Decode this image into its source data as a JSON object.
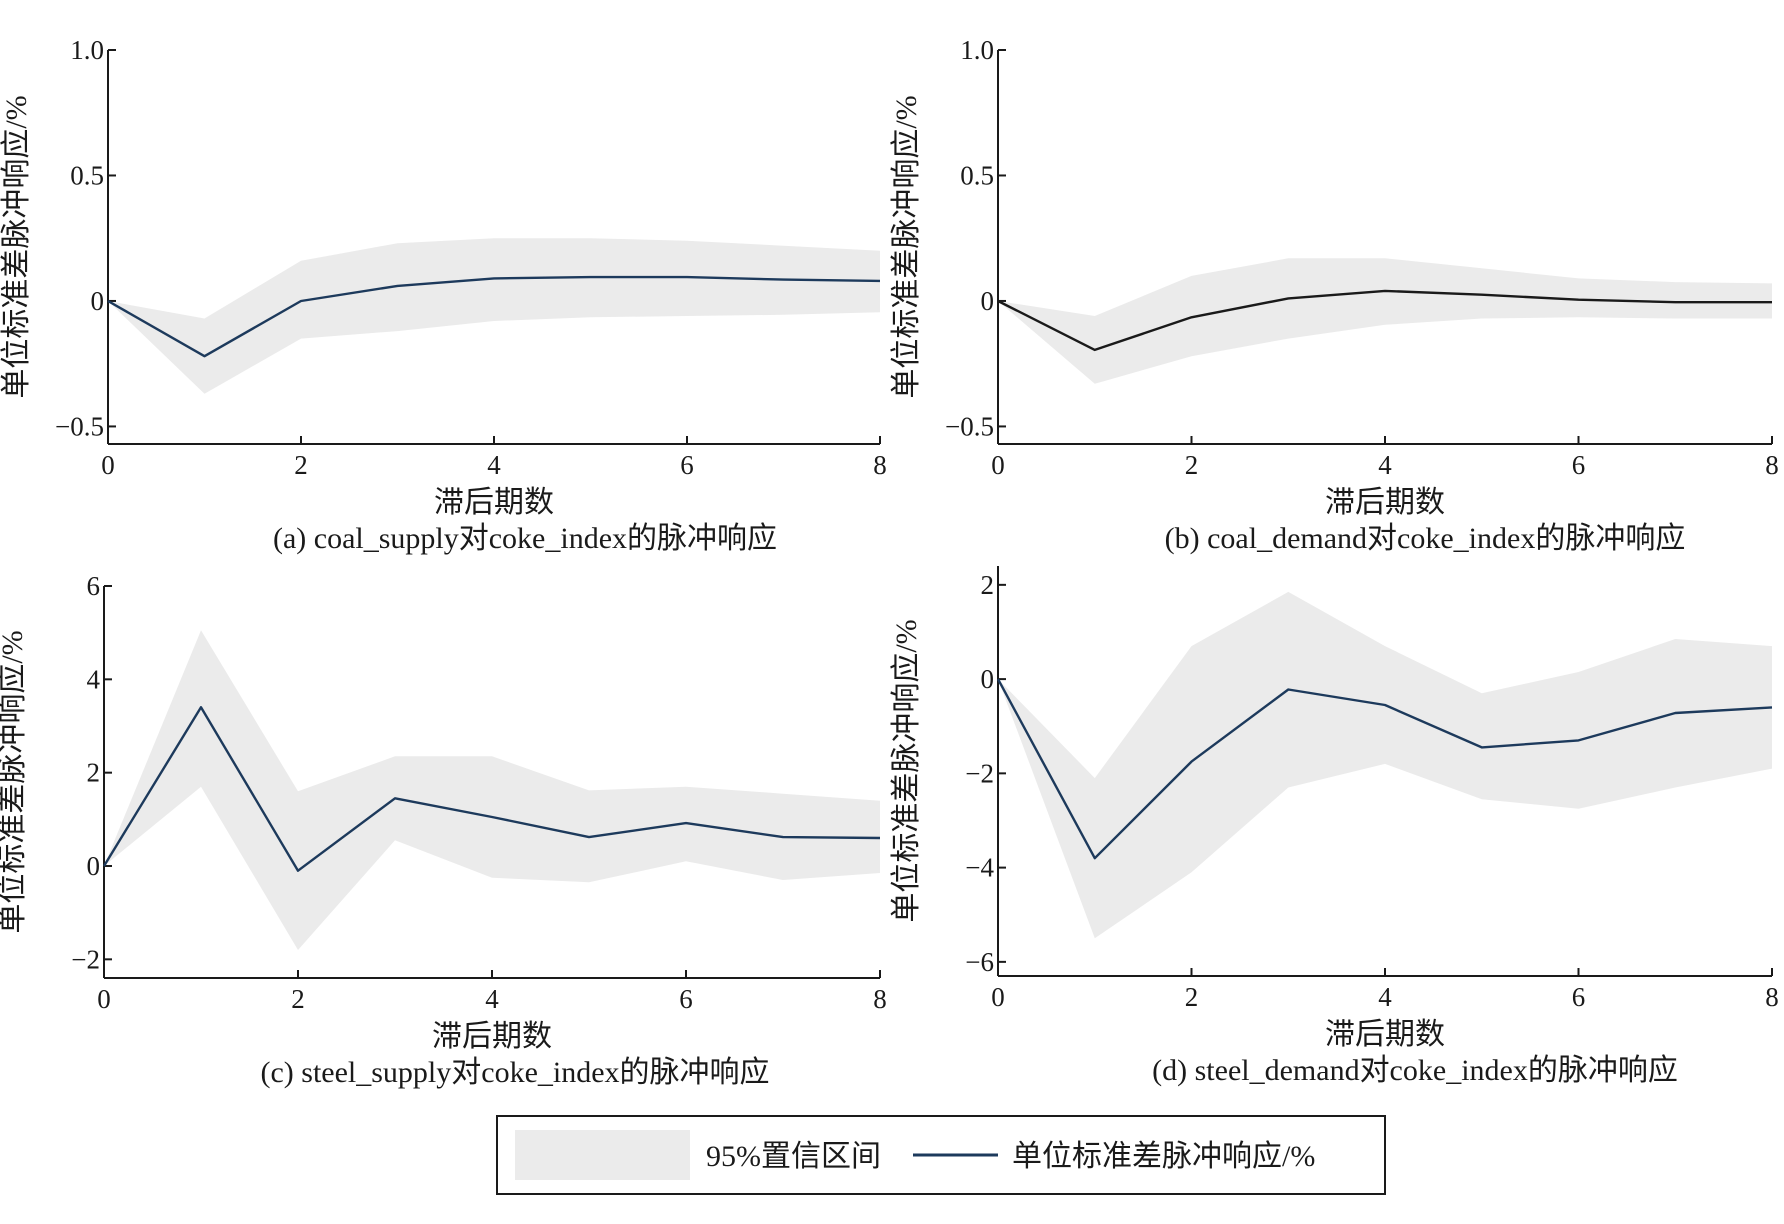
{
  "legend": {
    "band_label": "95%置信区间",
    "line_label": "单位标准差脉冲响应/%"
  },
  "colors": {
    "band": "#ebebeb",
    "line_navy": "#1d3a5c",
    "line_black": "#1a1a1a",
    "axis": "#1a1a1a"
  },
  "chart_data": [
    {
      "type": "line",
      "caption": "(a) coal_supply对coke_index的脉冲响应",
      "xlabel": "滞后期数",
      "ylabel": "单位标准差脉冲响应/%",
      "xlim": [
        0,
        8
      ],
      "ylim": [
        -0.57,
        1.0
      ],
      "xticks": [
        0,
        2,
        4,
        6,
        8
      ],
      "yticks": [
        -0.5,
        0,
        0.5,
        1.0
      ],
      "ytick_labels": [
        "−0.5",
        "0",
        "0.5",
        "1.0"
      ],
      "x": [
        0,
        1,
        2,
        3,
        4,
        5,
        6,
        7,
        8
      ],
      "series": [
        {
          "values": [
            0,
            -0.22,
            0,
            0.06,
            0.09,
            0.095,
            0.095,
            0.085,
            0.08
          ],
          "line_color": "navy"
        }
      ],
      "band_upper": [
        0,
        -0.07,
        0.16,
        0.23,
        0.25,
        0.25,
        0.24,
        0.22,
        0.2
      ],
      "band_lower": [
        0,
        -0.37,
        -0.15,
        -0.12,
        -0.08,
        -0.065,
        -0.06,
        -0.055,
        -0.045
      ]
    },
    {
      "type": "line",
      "caption": "(b) coal_demand对coke_index的脉冲响应",
      "xlabel": "滞后期数",
      "ylabel": "单位标准差脉冲响应/%",
      "xlim": [
        0,
        8
      ],
      "ylim": [
        -0.57,
        1.0
      ],
      "xticks": [
        0,
        2,
        4,
        6,
        8
      ],
      "yticks": [
        -0.5,
        0,
        0.5,
        1.0
      ],
      "ytick_labels": [
        "−0.5",
        "0",
        "0.5",
        "1.0"
      ],
      "x": [
        0,
        1,
        2,
        3,
        4,
        5,
        6,
        7,
        8
      ],
      "series": [
        {
          "values": [
            0,
            -0.195,
            -0.065,
            0.01,
            0.04,
            0.025,
            0.005,
            -0.005,
            -0.005
          ],
          "line_color": "black"
        }
      ],
      "band_upper": [
        0,
        -0.06,
        0.1,
        0.17,
        0.17,
        0.13,
        0.09,
        0.075,
        0.07
      ],
      "band_lower": [
        0,
        -0.33,
        -0.22,
        -0.15,
        -0.095,
        -0.07,
        -0.065,
        -0.07,
        -0.07
      ]
    },
    {
      "type": "line",
      "caption": "(c) steel_supply对coke_index的脉冲响应",
      "xlabel": "滞后期数",
      "ylabel": "单位标准差脉冲响应/%",
      "xlim": [
        0,
        8
      ],
      "ylim": [
        -2.4,
        6.0
      ],
      "xticks": [
        0,
        2,
        4,
        6,
        8
      ],
      "yticks": [
        -2,
        0,
        2,
        4,
        6
      ],
      "ytick_labels": [
        "−2",
        "0",
        "2",
        "4",
        "6"
      ],
      "x": [
        0,
        1,
        2,
        3,
        4,
        5,
        6,
        7,
        8
      ],
      "series": [
        {
          "values": [
            0,
            3.4,
            -0.1,
            1.45,
            1.05,
            0.62,
            0.92,
            0.62,
            0.6
          ],
          "line_color": "navy"
        }
      ],
      "band_upper": [
        0,
        5.05,
        1.6,
        2.35,
        2.35,
        1.62,
        1.7,
        1.55,
        1.4
      ],
      "band_lower": [
        0,
        1.7,
        -1.8,
        0.55,
        -0.25,
        -0.35,
        0.1,
        -0.3,
        -0.15
      ]
    },
    {
      "type": "line",
      "caption": "(d) steel_demand对coke_index的脉冲响应",
      "xlabel": "滞后期数",
      "ylabel": "单位标准差脉冲响应/%",
      "xlim": [
        0,
        8
      ],
      "ylim": [
        -6.3,
        2.4
      ],
      "xticks": [
        0,
        2,
        4,
        6,
        8
      ],
      "yticks": [
        -6,
        -4,
        -2,
        0,
        2
      ],
      "ytick_labels": [
        "−6",
        "−4",
        "−2",
        "0",
        "2"
      ],
      "x": [
        0,
        1,
        2,
        3,
        4,
        5,
        6,
        7,
        8
      ],
      "series": [
        {
          "values": [
            0,
            -3.8,
            -1.75,
            -0.22,
            -0.55,
            -1.45,
            -1.3,
            -0.72,
            -0.6
          ],
          "line_color": "navy"
        }
      ],
      "band_upper": [
        0,
        -2.1,
        0.7,
        1.85,
        0.7,
        -0.3,
        0.15,
        0.85,
        0.7
      ],
      "band_lower": [
        0,
        -5.5,
        -4.1,
        -2.3,
        -1.8,
        -2.55,
        -2.75,
        -2.3,
        -1.9
      ]
    }
  ]
}
